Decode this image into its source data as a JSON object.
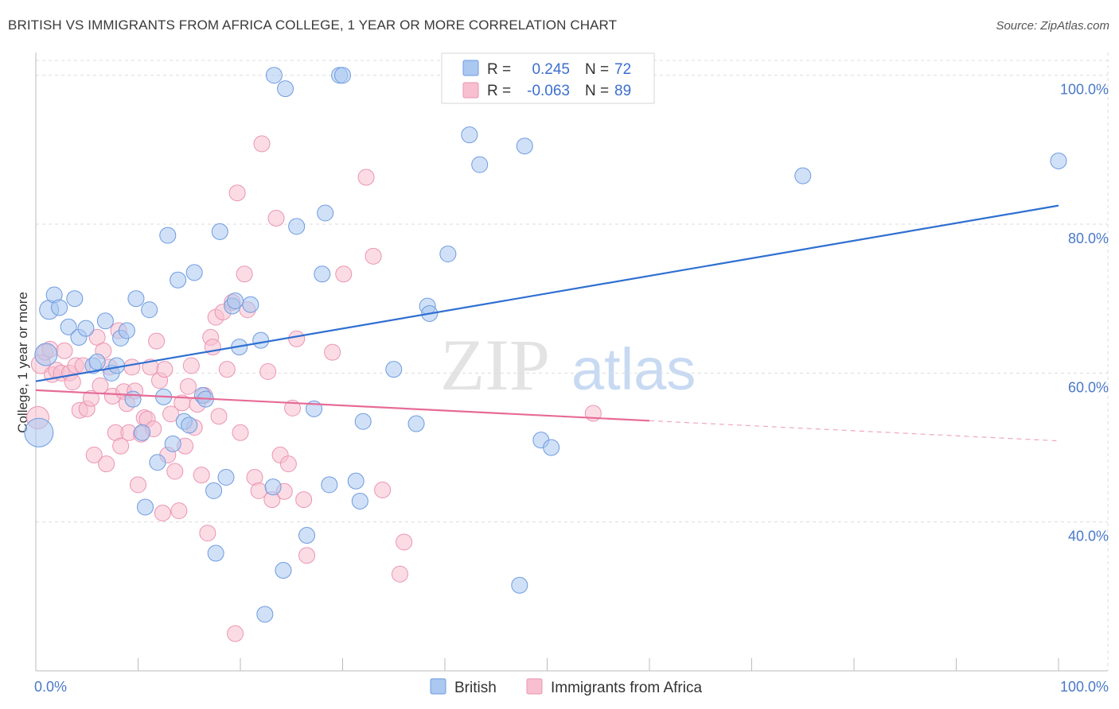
{
  "title": "BRITISH VS IMMIGRANTS FROM AFRICA COLLEGE, 1 YEAR OR MORE CORRELATION CHART",
  "source": "Source: ZipAtlas.com",
  "colors": {
    "british_fill": "#aac8f0",
    "british_stroke": "#6d9ae0",
    "british_line": "#2f6fd1",
    "africa_fill": "#f7bfd0",
    "africa_stroke": "#eb94b2",
    "africa_line": "#e66b97",
    "grid": "#dddddd",
    "tick_label": "#4a78c8"
  },
  "legend": {
    "r_label": "R =",
    "n_label": "N =",
    "rows": [
      {
        "r": "0.245",
        "n": "72"
      },
      {
        "r": "-0.063",
        "n": "89"
      }
    ]
  },
  "watermark": {
    "zip": "ZIP",
    "atlas": "atlas"
  },
  "chart_data": {
    "type": "scatter",
    "title": "BRITISH VS IMMIGRANTS FROM AFRICA COLLEGE, 1 YEAR OR MORE CORRELATION CHART",
    "xlabel": "",
    "ylabel": "College, 1 year or more",
    "xlim": [
      0,
      100
    ],
    "ylim": [
      20,
      102
    ],
    "x_tick_labels": [
      "0.0%",
      "100.0%"
    ],
    "y_ticks": [
      40,
      60,
      80,
      100
    ],
    "y_tick_labels": [
      "40.0%",
      "60.0%",
      "80.0%",
      "100.0%"
    ],
    "grid": true,
    "legend_placement": "top-center",
    "series": [
      {
        "name": "British",
        "trend": {
          "x": [
            0,
            100
          ],
          "y": [
            58.9,
            82.5
          ]
        },
        "points": [
          [
            0.3,
            52,
            18
          ],
          [
            1.0,
            62.5,
            14
          ],
          [
            1.3,
            68.5,
            12
          ],
          [
            1.8,
            70.5,
            10
          ],
          [
            2.3,
            68.8,
            10
          ],
          [
            3.2,
            66.2,
            10
          ],
          [
            3.8,
            70,
            10
          ],
          [
            4.2,
            64.8,
            10
          ],
          [
            4.9,
            66,
            10
          ],
          [
            5.6,
            61,
            10
          ],
          [
            6.0,
            61.5,
            10
          ],
          [
            6.8,
            67,
            10
          ],
          [
            7.4,
            60,
            10
          ],
          [
            7.9,
            61,
            10
          ],
          [
            8.3,
            64.7,
            10
          ],
          [
            8.9,
            65.7,
            10
          ],
          [
            9.5,
            56.5,
            10
          ],
          [
            9.8,
            70,
            10
          ],
          [
            10.4,
            52,
            10
          ],
          [
            10.7,
            42,
            10
          ],
          [
            11.1,
            68.5,
            10
          ],
          [
            11.9,
            48,
            10
          ],
          [
            12.5,
            56.8,
            10
          ],
          [
            12.9,
            78.5,
            10
          ],
          [
            13.4,
            50.5,
            10
          ],
          [
            13.9,
            72.5,
            10
          ],
          [
            14.5,
            53.5,
            10
          ],
          [
            15.0,
            53,
            10
          ],
          [
            15.5,
            73.5,
            10
          ],
          [
            16.3,
            57,
            10
          ],
          [
            16.6,
            56.5,
            10
          ],
          [
            17.4,
            44.2,
            10
          ],
          [
            17.6,
            35.8,
            10
          ],
          [
            18.0,
            79,
            10
          ],
          [
            18.6,
            46,
            10
          ],
          [
            19.2,
            69,
            10
          ],
          [
            19.5,
            69.7,
            10
          ],
          [
            19.9,
            63.5,
            10
          ],
          [
            21.0,
            69.2,
            10
          ],
          [
            22.0,
            64.4,
            10
          ],
          [
            22.4,
            27.6,
            10
          ],
          [
            23.2,
            44.7,
            10
          ],
          [
            23.3,
            100,
            10
          ],
          [
            24.2,
            33.5,
            10
          ],
          [
            24.4,
            98.2,
            10
          ],
          [
            25.5,
            79.7,
            10
          ],
          [
            26.5,
            38.2,
            10
          ],
          [
            27.2,
            55.2,
            10
          ],
          [
            28.0,
            73.3,
            10
          ],
          [
            28.3,
            81.5,
            10
          ],
          [
            28.7,
            45,
            10
          ],
          [
            29.7,
            100,
            10
          ],
          [
            30.0,
            100,
            10
          ],
          [
            31.3,
            45.5,
            10
          ],
          [
            31.7,
            42.8,
            10
          ],
          [
            32.0,
            53.5,
            10
          ],
          [
            35.0,
            60.5,
            10
          ],
          [
            37.2,
            53.2,
            10
          ],
          [
            38.3,
            69,
            10
          ],
          [
            38.5,
            68,
            10
          ],
          [
            40.3,
            76,
            10
          ],
          [
            42.4,
            92,
            10
          ],
          [
            43.4,
            88,
            10
          ],
          [
            47.3,
            31.5,
            10
          ],
          [
            47.8,
            90.5,
            10
          ],
          [
            49.4,
            51,
            10
          ],
          [
            50.4,
            50,
            10
          ],
          [
            52.0,
            100,
            10
          ],
          [
            75.0,
            86.5,
            10
          ],
          [
            100.0,
            88.5,
            10
          ]
        ]
      },
      {
        "name": "Immigrants from Africa",
        "trend": {
          "x": [
            0,
            60
          ],
          "y": [
            57.7,
            53.6
          ]
        },
        "trend_dashed": {
          "x": [
            60,
            100
          ],
          "y": [
            53.6,
            50.9
          ]
        },
        "points": [
          [
            0.2,
            54,
            14
          ],
          [
            0.5,
            61.2,
            12
          ],
          [
            0.9,
            62.8,
            10
          ],
          [
            1.4,
            63.2,
            10
          ],
          [
            1.6,
            59.8,
            10
          ],
          [
            2.0,
            60.4,
            10
          ],
          [
            2.5,
            60,
            10
          ],
          [
            2.8,
            63,
            10
          ],
          [
            3.3,
            60,
            10
          ],
          [
            3.6,
            58.8,
            10
          ],
          [
            3.9,
            61,
            10
          ],
          [
            4.3,
            55,
            10
          ],
          [
            4.6,
            61,
            10
          ],
          [
            5.0,
            55.2,
            10
          ],
          [
            5.4,
            56.6,
            10
          ],
          [
            5.7,
            49,
            10
          ],
          [
            6.0,
            64.8,
            10
          ],
          [
            6.3,
            58.3,
            10
          ],
          [
            6.6,
            63,
            10
          ],
          [
            6.9,
            47.8,
            10
          ],
          [
            7.2,
            60.8,
            10
          ],
          [
            7.5,
            56.9,
            10
          ],
          [
            7.8,
            52,
            10
          ],
          [
            8.1,
            65.7,
            10
          ],
          [
            8.3,
            50.2,
            10
          ],
          [
            8.6,
            57.5,
            10
          ],
          [
            8.9,
            55.9,
            10
          ],
          [
            9.1,
            52,
            10
          ],
          [
            9.4,
            60.8,
            10
          ],
          [
            9.7,
            57.6,
            10
          ],
          [
            10.0,
            45,
            10
          ],
          [
            10.3,
            51.8,
            10
          ],
          [
            10.6,
            54,
            10
          ],
          [
            10.9,
            53.8,
            10
          ],
          [
            11.2,
            60.8,
            10
          ],
          [
            11.5,
            52.5,
            10
          ],
          [
            11.8,
            64.3,
            10
          ],
          [
            12.1,
            59,
            10
          ],
          [
            12.4,
            41.2,
            10
          ],
          [
            12.6,
            60.5,
            10
          ],
          [
            12.9,
            49,
            10
          ],
          [
            13.2,
            54.5,
            10
          ],
          [
            13.6,
            46.8,
            10
          ],
          [
            14.0,
            41.5,
            10
          ],
          [
            14.3,
            56,
            10
          ],
          [
            14.6,
            50.2,
            10
          ],
          [
            14.9,
            58.2,
            10
          ],
          [
            15.2,
            61,
            10
          ],
          [
            15.5,
            52.7,
            10
          ],
          [
            15.8,
            55.8,
            10
          ],
          [
            16.2,
            46.3,
            10
          ],
          [
            16.5,
            57,
            10
          ],
          [
            16.8,
            38.5,
            10
          ],
          [
            17.1,
            64.8,
            10
          ],
          [
            17.3,
            63.5,
            10
          ],
          [
            17.6,
            67.5,
            10
          ],
          [
            17.9,
            54.2,
            10
          ],
          [
            18.3,
            68.2,
            10
          ],
          [
            18.7,
            60.5,
            10
          ],
          [
            19.2,
            69.5,
            10
          ],
          [
            19.5,
            25,
            10
          ],
          [
            19.7,
            84.2,
            10
          ],
          [
            20.0,
            52,
            10
          ],
          [
            20.4,
            73.3,
            10
          ],
          [
            20.7,
            68.5,
            10
          ],
          [
            21.4,
            46,
            10
          ],
          [
            21.8,
            44.2,
            10
          ],
          [
            22.1,
            90.8,
            10
          ],
          [
            22.7,
            60.2,
            10
          ],
          [
            23.1,
            43,
            10
          ],
          [
            23.5,
            80.8,
            10
          ],
          [
            23.9,
            49,
            10
          ],
          [
            24.3,
            44.1,
            10
          ],
          [
            24.7,
            47.8,
            10
          ],
          [
            25.1,
            55.3,
            10
          ],
          [
            25.5,
            64.6,
            10
          ],
          [
            26.2,
            43,
            10
          ],
          [
            26.5,
            35.5,
            10
          ],
          [
            29.0,
            62.8,
            10
          ],
          [
            30.1,
            73.3,
            10
          ],
          [
            32.3,
            86.3,
            10
          ],
          [
            33.0,
            75.7,
            10
          ],
          [
            33.9,
            44.3,
            10
          ],
          [
            35.6,
            33,
            10
          ],
          [
            36.0,
            37.3,
            10
          ],
          [
            54.5,
            54.6,
            10
          ]
        ]
      }
    ]
  }
}
